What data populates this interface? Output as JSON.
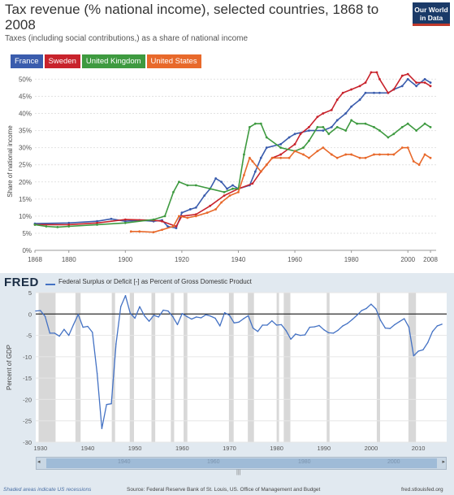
{
  "owid": {
    "title": "Tax revenue (% national income), selected countries, 1868 to 2008",
    "subtitle": "Taxes (including social contributions,) as a share of national income",
    "logo_line1": "Our World",
    "logo_line2": "in Data"
  },
  "fred": {
    "logo": "FRED",
    "series_label": "Federal Surplus or Deficit [-] as Percent of Gross Domestic Product",
    "note": "Shaded areas indicate US recessions",
    "source": "Source: Federal Reserve Bank of St. Louis, US. Office of Management and Budget",
    "url": "fred.stlouisfed.org",
    "scroll_labels": [
      "1940",
      "1960",
      "1980",
      "2000"
    ],
    "scroll_left": "◂",
    "scroll_right": "▸",
    "scroll_handle": "|||"
  },
  "colors": {
    "france": "#3a5cad",
    "sweden": "#c8232c",
    "uk": "#3e9a40",
    "us": "#e8692b",
    "fred_line": "#4472c4",
    "recession": "#d8d8d8"
  },
  "chart_data": [
    {
      "type": "line",
      "title": "Tax revenue (% national income), selected countries, 1868 to 2008",
      "subtitle": "Taxes (including social contributions,) as a share of national income",
      "ylabel": "Share of national income",
      "xlim": [
        1868,
        2010
      ],
      "ylim": [
        0,
        52
      ],
      "x_ticks": [
        1868,
        1880,
        1900,
        1920,
        1940,
        1960,
        1980,
        2000,
        2008
      ],
      "y_ticks": [
        0,
        5,
        10,
        15,
        20,
        25,
        30,
        35,
        40,
        45,
        50
      ],
      "y_tick_labels": [
        "0%",
        "5%",
        "10%",
        "15%",
        "20%",
        "25%",
        "30%",
        "35%",
        "40%",
        "45%",
        "50%"
      ],
      "grid": true,
      "legend": "top-left",
      "series": [
        {
          "name": "France",
          "color_key": "france",
          "points": [
            [
              1868,
              7.8
            ],
            [
              1880,
              8
            ],
            [
              1890,
              8.5
            ],
            [
              1895,
              9.2
            ],
            [
              1900,
              8.5
            ],
            [
              1905,
              8.8
            ],
            [
              1910,
              8.5
            ],
            [
              1913,
              8.8
            ],
            [
              1915,
              7
            ],
            [
              1918,
              6.5
            ],
            [
              1920,
              11
            ],
            [
              1923,
              12
            ],
            [
              1925,
              12.5
            ],
            [
              1928,
              16
            ],
            [
              1930,
              18
            ],
            [
              1932,
              21
            ],
            [
              1934,
              20
            ],
            [
              1936,
              18
            ],
            [
              1938,
              19
            ],
            [
              1940,
              18
            ],
            [
              1944,
              19
            ],
            [
              1946,
              23
            ],
            [
              1948,
              27
            ],
            [
              1950,
              30
            ],
            [
              1955,
              31
            ],
            [
              1958,
              33
            ],
            [
              1960,
              34
            ],
            [
              1965,
              35
            ],
            [
              1970,
              35
            ],
            [
              1973,
              36
            ],
            [
              1975,
              38
            ],
            [
              1978,
              40
            ],
            [
              1980,
              42
            ],
            [
              1983,
              44
            ],
            [
              1985,
              46
            ],
            [
              1988,
              46
            ],
            [
              1990,
              46
            ],
            [
              1993,
              46
            ],
            [
              1995,
              47
            ],
            [
              1998,
              48
            ],
            [
              2000,
              50
            ],
            [
              2003,
              48
            ],
            [
              2006,
              50
            ],
            [
              2008,
              49
            ]
          ]
        },
        {
          "name": "Sweden",
          "color_key": "sweden",
          "points": [
            [
              1868,
              7.5
            ],
            [
              1880,
              7.5
            ],
            [
              1890,
              8
            ],
            [
              1900,
              9
            ],
            [
              1910,
              8.8
            ],
            [
              1913,
              8.5
            ],
            [
              1918,
              7
            ],
            [
              1920,
              10
            ],
            [
              1925,
              10.5
            ],
            [
              1930,
              13
            ],
            [
              1935,
              16
            ],
            [
              1940,
              18
            ],
            [
              1945,
              19.5
            ],
            [
              1948,
              23
            ],
            [
              1950,
              25
            ],
            [
              1952,
              27
            ],
            [
              1955,
              28
            ],
            [
              1960,
              31
            ],
            [
              1962,
              34
            ],
            [
              1965,
              36
            ],
            [
              1968,
              39
            ],
            [
              1970,
              40
            ],
            [
              1973,
              41
            ],
            [
              1975,
              44
            ],
            [
              1977,
              46
            ],
            [
              1980,
              47
            ],
            [
              1983,
              48
            ],
            [
              1985,
              49
            ],
            [
              1987,
              52
            ],
            [
              1989,
              52
            ],
            [
              1990,
              50
            ],
            [
              1993,
              46
            ],
            [
              1995,
              47
            ],
            [
              1998,
              51
            ],
            [
              2000,
              51.5
            ],
            [
              2003,
              49
            ],
            [
              2006,
              49
            ],
            [
              2008,
              48
            ]
          ]
        },
        {
          "name": "United Kingdom",
          "color_key": "uk",
          "points": [
            [
              1868,
              7.5
            ],
            [
              1872,
              7
            ],
            [
              1876,
              6.8
            ],
            [
              1880,
              7
            ],
            [
              1890,
              7.5
            ],
            [
              1900,
              8
            ],
            [
              1910,
              9
            ],
            [
              1914,
              10
            ],
            [
              1917,
              17
            ],
            [
              1919,
              20
            ],
            [
              1922,
              19
            ],
            [
              1925,
              19
            ],
            [
              1930,
              18
            ],
            [
              1935,
              17
            ],
            [
              1938,
              18
            ],
            [
              1940,
              18
            ],
            [
              1942,
              28
            ],
            [
              1944,
              36
            ],
            [
              1946,
              37
            ],
            [
              1948,
              37
            ],
            [
              1950,
              33
            ],
            [
              1955,
              30
            ],
            [
              1960,
              29
            ],
            [
              1963,
              30
            ],
            [
              1965,
              32
            ],
            [
              1968,
              36
            ],
            [
              1970,
              36
            ],
            [
              1972,
              34
            ],
            [
              1975,
              36
            ],
            [
              1978,
              35
            ],
            [
              1980,
              38
            ],
            [
              1982,
              37
            ],
            [
              1985,
              37
            ],
            [
              1988,
              36
            ],
            [
              1990,
              35
            ],
            [
              1993,
              33
            ],
            [
              1995,
              34
            ],
            [
              1998,
              36
            ],
            [
              2000,
              37
            ],
            [
              2003,
              35
            ],
            [
              2006,
              37
            ],
            [
              2008,
              36
            ]
          ]
        },
        {
          "name": "United States",
          "color_key": "us",
          "points": [
            [
              1902,
              5.5
            ],
            [
              1905,
              5.5
            ],
            [
              1910,
              5.3
            ],
            [
              1913,
              6
            ],
            [
              1917,
              7
            ],
            [
              1919,
              10
            ],
            [
              1922,
              9.5
            ],
            [
              1925,
              10
            ],
            [
              1929,
              11
            ],
            [
              1932,
              12
            ],
            [
              1934,
              14
            ],
            [
              1937,
              16
            ],
            [
              1940,
              17
            ],
            [
              1942,
              22
            ],
            [
              1944,
              27
            ],
            [
              1945,
              26
            ],
            [
              1948,
              23
            ],
            [
              1950,
              25
            ],
            [
              1952,
              27
            ],
            [
              1955,
              27
            ],
            [
              1958,
              27
            ],
            [
              1960,
              29
            ],
            [
              1963,
              28
            ],
            [
              1965,
              27
            ],
            [
              1968,
              29
            ],
            [
              1970,
              30
            ],
            [
              1973,
              28
            ],
            [
              1975,
              27
            ],
            [
              1978,
              28
            ],
            [
              1980,
              28
            ],
            [
              1983,
              27
            ],
            [
              1985,
              27
            ],
            [
              1988,
              28
            ],
            [
              1990,
              28
            ],
            [
              1993,
              28
            ],
            [
              1995,
              28
            ],
            [
              1998,
              30
            ],
            [
              2000,
              30
            ],
            [
              2002,
              26
            ],
            [
              2004,
              25
            ],
            [
              2006,
              28
            ],
            [
              2008,
              27
            ]
          ]
        }
      ]
    },
    {
      "type": "line",
      "series_name": "Federal Surplus or Deficit [-] as Percent of Gross Domestic Product",
      "ylabel": "Percent of GDP",
      "xlim": [
        1929,
        2016
      ],
      "ylim": [
        -30,
        5
      ],
      "x_ticks": [
        1930,
        1940,
        1950,
        1960,
        1970,
        1980,
        1990,
        2000,
        2010
      ],
      "y_ticks": [
        5,
        0,
        -5,
        -10,
        -15,
        -20,
        -25,
        -30
      ],
      "recessions": [
        [
          1929.6,
          1933.2
        ],
        [
          1937.4,
          1938.5
        ],
        [
          1945.1,
          1945.8
        ],
        [
          1948.9,
          1949.8
        ],
        [
          1953.5,
          1954.3
        ],
        [
          1957.6,
          1958.3
        ],
        [
          1960.3,
          1961.1
        ],
        [
          1969.9,
          1970.9
        ],
        [
          1973.9,
          1975.2
        ],
        [
          1980.0,
          1980.5
        ],
        [
          1981.5,
          1982.9
        ],
        [
          1990.6,
          1991.2
        ],
        [
          2001.2,
          2001.9
        ],
        [
          2007.9,
          2009.5
        ]
      ],
      "grid": true,
      "x": [
        1929,
        1930,
        1931,
        1932,
        1933,
        1934,
        1935,
        1936,
        1937,
        1938,
        1939,
        1940,
        1941,
        1942,
        1943,
        1944,
        1945,
        1946,
        1947,
        1948,
        1949,
        1950,
        1951,
        1952,
        1953,
        1954,
        1955,
        1956,
        1957,
        1958,
        1959,
        1960,
        1961,
        1962,
        1963,
        1964,
        1965,
        1966,
        1967,
        1968,
        1969,
        1970,
        1971,
        1972,
        1973,
        1974,
        1975,
        1976,
        1977,
        1978,
        1979,
        1980,
        1981,
        1982,
        1983,
        1984,
        1985,
        1986,
        1987,
        1988,
        1989,
        1990,
        1991,
        1992,
        1993,
        1994,
        1995,
        1996,
        1997,
        1998,
        1999,
        2000,
        2001,
        2002,
        2003,
        2004,
        2005,
        2006,
        2007,
        2008,
        2009,
        2010,
        2011,
        2012,
        2013,
        2014,
        2015
      ],
      "y": [
        0.7,
        0.8,
        -0.6,
        -4.5,
        -4.5,
        -5.2,
        -3.6,
        -5.0,
        -2.5,
        -0.1,
        -3.1,
        -2.9,
        -4.3,
        -13.9,
        -26.8,
        -21.2,
        -21.0,
        -7.0,
        1.7,
        4.3,
        0.2,
        -1.0,
        1.7,
        -0.4,
        -1.7,
        -0.3,
        -0.7,
        0.9,
        0.7,
        -0.6,
        -2.5,
        0.1,
        -0.6,
        -1.2,
        -0.7,
        -0.9,
        -0.2,
        -0.5,
        -1.0,
        -2.8,
        0.3,
        -0.3,
        -2.1,
        -1.9,
        -1.1,
        -0.4,
        -3.3,
        -4.1,
        -2.6,
        -2.6,
        -1.6,
        -2.6,
        -2.5,
        -3.9,
        -5.9,
        -4.7,
        -5.0,
        -4.9,
        -3.1,
        -3.0,
        -2.7,
        -3.7,
        -4.4,
        -4.5,
        -3.8,
        -2.8,
        -2.2,
        -1.3,
        -0.3,
        0.8,
        1.3,
        2.3,
        1.2,
        -1.5,
        -3.3,
        -3.4,
        -2.5,
        -1.8,
        -1.1,
        -3.1,
        -9.8,
        -8.7,
        -8.4,
        -6.7,
        -4.1,
        -2.8,
        -2.4
      ]
    }
  ]
}
